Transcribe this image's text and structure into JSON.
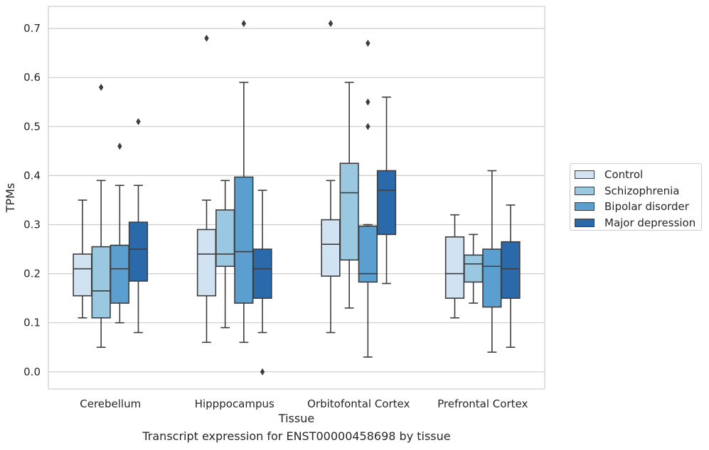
{
  "chart_data": {
    "type": "box",
    "xlabel": "Tissue",
    "ylabel": "TPMs",
    "caption": "Transcript expression for ENST00000458698 by tissue",
    "categories": [
      "Cerebellum",
      "Hipppocampus",
      "Orbitofontal Cortex",
      "Prefrontal Cortex"
    ],
    "ylim": [
      -0.035,
      0.745
    ],
    "yticks": [
      "0.0",
      "0.1",
      "0.2",
      "0.3",
      "0.4",
      "0.5",
      "0.6",
      "0.7"
    ],
    "grid": true,
    "legend_position": "right",
    "series": [
      {
        "name": "Control",
        "color": "#d1e2f2",
        "boxes": [
          {
            "whislo": 0.11,
            "q1": 0.155,
            "med": 0.21,
            "q3": 0.24,
            "whishi": 0.35,
            "fliers": []
          },
          {
            "whislo": 0.06,
            "q1": 0.155,
            "med": 0.24,
            "q3": 0.29,
            "whishi": 0.35,
            "fliers": [
              0.68
            ]
          },
          {
            "whislo": 0.08,
            "q1": 0.195,
            "med": 0.26,
            "q3": 0.31,
            "whishi": 0.39,
            "fliers": [
              0.71
            ]
          },
          {
            "whislo": 0.11,
            "q1": 0.15,
            "med": 0.2,
            "q3": 0.275,
            "whishi": 0.32,
            "fliers": []
          }
        ]
      },
      {
        "name": "Schizophrenia",
        "color": "#9ac8e0",
        "boxes": [
          {
            "whislo": 0.05,
            "q1": 0.11,
            "med": 0.165,
            "q3": 0.255,
            "whishi": 0.39,
            "fliers": [
              0.58
            ]
          },
          {
            "whislo": 0.09,
            "q1": 0.215,
            "med": 0.24,
            "q3": 0.33,
            "whishi": 0.39,
            "fliers": []
          },
          {
            "whislo": 0.13,
            "q1": 0.228,
            "med": 0.365,
            "q3": 0.425,
            "whishi": 0.59,
            "fliers": []
          },
          {
            "whislo": 0.14,
            "q1": 0.183,
            "med": 0.22,
            "q3": 0.238,
            "whishi": 0.28,
            "fliers": []
          }
        ]
      },
      {
        "name": "Bipolar disorder",
        "color": "#5a9fcf",
        "boxes": [
          {
            "whislo": 0.1,
            "q1": 0.14,
            "med": 0.21,
            "q3": 0.258,
            "whishi": 0.38,
            "fliers": [
              0.46
            ]
          },
          {
            "whislo": 0.06,
            "q1": 0.14,
            "med": 0.245,
            "q3": 0.397,
            "whishi": 0.59,
            "fliers": [
              0.71
            ]
          },
          {
            "whislo": 0.03,
            "q1": 0.183,
            "med": 0.2,
            "q3": 0.297,
            "whishi": 0.3,
            "fliers": [
              0.67,
              0.55,
              0.5
            ]
          },
          {
            "whislo": 0.04,
            "q1": 0.132,
            "med": 0.215,
            "q3": 0.25,
            "whishi": 0.41,
            "fliers": []
          }
        ]
      },
      {
        "name": "Major depression",
        "color": "#2a6aab",
        "boxes": [
          {
            "whislo": 0.08,
            "q1": 0.185,
            "med": 0.25,
            "q3": 0.305,
            "whishi": 0.38,
            "fliers": [
              0.51
            ]
          },
          {
            "whislo": 0.08,
            "q1": 0.15,
            "med": 0.21,
            "q3": 0.25,
            "whishi": 0.37,
            "fliers": [
              0.0
            ]
          },
          {
            "whislo": 0.18,
            "q1": 0.28,
            "med": 0.37,
            "q3": 0.41,
            "whishi": 0.56,
            "fliers": []
          },
          {
            "whislo": 0.05,
            "q1": 0.15,
            "med": 0.21,
            "q3": 0.265,
            "whishi": 0.34,
            "fliers": []
          }
        ]
      }
    ]
  }
}
